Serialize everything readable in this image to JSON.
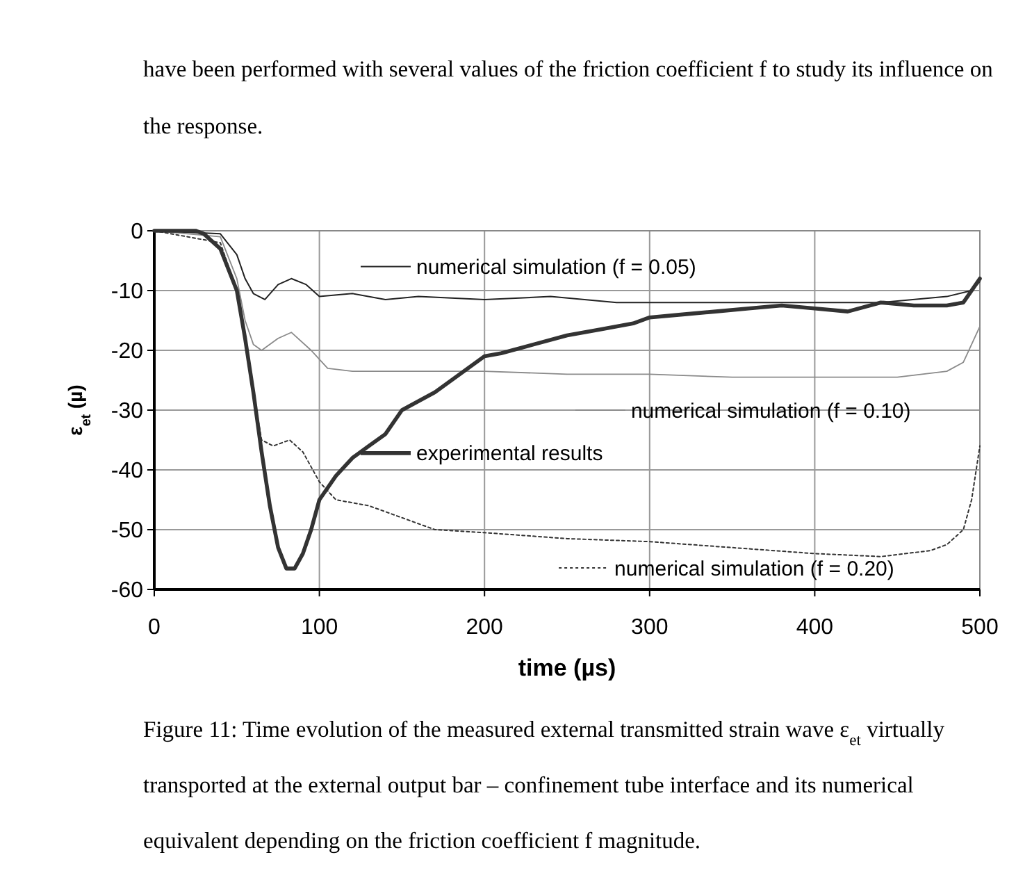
{
  "chart_data": {
    "type": "line",
    "xlabel": "time (µs)",
    "ylabel": "ε$_{et}$ (µ)",
    "xlim": [
      0,
      500
    ],
    "ylim": [
      -60,
      0
    ],
    "xticks": [
      0,
      100,
      200,
      300,
      400,
      500
    ],
    "yticks": [
      -60,
      -50,
      -40,
      -30,
      -20,
      -10,
      0
    ],
    "grid": true,
    "legend": "right",
    "annotations": [
      "have been performed with several values of the friction coefficient f to study its influence on",
      "the response.",
      "Figure 11: Time evolution of the measured external transmitted strain wave ε$_{et}$ virtually",
      "transported at the external output bar – confinement tube interface and its numerical",
      "equivalent depending on the friction coefficient f magnitude."
    ],
    "series": [
      {
        "name": "numerical simulation (f = 0.05)",
        "color": "#222222",
        "line_style": "solid",
        "x": [
          0,
          40,
          50,
          55,
          60,
          67,
          75,
          83,
          92,
          100,
          120,
          140,
          160,
          200,
          240,
          280,
          320,
          360,
          400,
          440,
          480,
          495,
          500
        ],
        "values": [
          0,
          -0.5,
          -4,
          -8,
          -10.5,
          -11.5,
          -9,
          -8,
          -9,
          -11,
          -10.5,
          -11.5,
          -11,
          -11.5,
          -11,
          -12,
          -12,
          -12,
          -12,
          -12,
          -11,
          -10,
          -8.5
        ]
      },
      {
        "name": "numerical simulation (f = 0.10)",
        "color": "#8a8a8a",
        "line_style": "solid",
        "x": [
          0,
          40,
          50,
          55,
          60,
          65,
          75,
          83,
          95,
          105,
          120,
          150,
          200,
          250,
          300,
          350,
          400,
          450,
          480,
          490,
          500
        ],
        "values": [
          0,
          -1,
          -8,
          -15,
          -19,
          -20,
          -18,
          -17,
          -20,
          -23,
          -23.5,
          -23.5,
          -23.5,
          -24,
          -24,
          -24.5,
          -24.5,
          -24.5,
          -23.5,
          -22,
          -16
        ]
      },
      {
        "name": "experimental results",
        "color": "#333333",
        "line_style": "solid",
        "x": [
          0,
          25,
          30,
          40,
          50,
          55,
          60,
          65,
          70,
          75,
          80,
          85,
          90,
          95,
          100,
          110,
          120,
          130,
          140,
          150,
          170,
          190,
          200,
          210,
          230,
          250,
          270,
          290,
          300,
          320,
          340,
          360,
          380,
          400,
          420,
          440,
          460,
          480,
          490,
          500
        ],
        "values": [
          0,
          0,
          -0.5,
          -3,
          -10,
          -18,
          -27,
          -37,
          -46,
          -53,
          -56.5,
          -56.5,
          -54,
          -50,
          -45,
          -41,
          -38,
          -36,
          -34,
          -30,
          -27,
          -23,
          -21,
          -20.5,
          -19,
          -17.5,
          -16.5,
          -15.5,
          -14.5,
          -14,
          -13.5,
          -13,
          -12.5,
          -13,
          -13.5,
          -12,
          -12.5,
          -12.5,
          -12,
          -8
        ]
      },
      {
        "name": "numerical simulation (f = 0.20)",
        "color": "#333333",
        "line_style": "dotted",
        "x": [
          0,
          40,
          50,
          55,
          60,
          65,
          72,
          82,
          90,
          100,
          110,
          130,
          150,
          170,
          200,
          250,
          300,
          350,
          400,
          440,
          470,
          480,
          490,
          495,
          500
        ],
        "values": [
          0,
          -2,
          -10,
          -18,
          -27,
          -35,
          -36,
          -35,
          -37,
          -42,
          -45,
          -46,
          -48,
          -50,
          -50.5,
          -51.5,
          -52,
          -53,
          -54,
          -54.5,
          -53.5,
          -52.5,
          -50,
          -45,
          -36
        ]
      }
    ]
  }
}
